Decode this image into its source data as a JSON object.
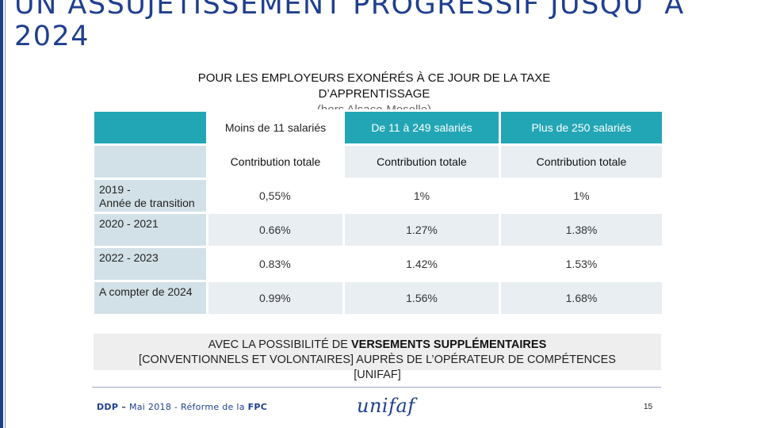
{
  "slide": {
    "title_line1": "UN ASSUJETISSEMENT PROGRESSIF JUSQU’ À",
    "title_line2": "2024",
    "subtitle_line1": "POUR LES EMPLOYEURS EXONÉRÉS À CE JOUR DE LA TAXE",
    "subtitle_line2": "D’APPRENTISSAGE",
    "subtitle_line3": "(hors Alsace-Moselle)"
  },
  "table": {
    "columns": [
      "Moins de 11 salariés",
      "De 11 à 249 salariés",
      "Plus de 250 salariés"
    ],
    "subheaders": [
      "Contribution totale",
      "Contribution totale",
      "Contribution totale"
    ],
    "rows": [
      {
        "label_line1": "2019 -",
        "label_line2": "Année de transition",
        "values": [
          "0,55%",
          "1%",
          "1%"
        ]
      },
      {
        "label_line1": "2020 - 2021",
        "label_line2": "",
        "values": [
          "0.66%",
          "1.27%",
          "1.38%"
        ]
      },
      {
        "label_line1": "2022 - 2023",
        "label_line2": "",
        "values": [
          "0.83%",
          "1.42%",
          "1.53%"
        ]
      },
      {
        "label_line1": "A compter de 2024",
        "label_line2": "",
        "values": [
          "0.99%",
          "1.56%",
          "1.68%"
        ]
      }
    ]
  },
  "note": {
    "prefix": "AVEC LA POSSIBILITÉ DE ",
    "bold": "VERSEMENTS SUPPLÉMENTAIRES",
    "line2": "[CONVENTIONNELS ET VOLONTAIRES]  AUPRÈS DE L’OPÉRATEUR DE COMPÉTENCES",
    "line3": "[UNIFAF]"
  },
  "footer": {
    "org": "DDP –",
    "text": " Mai 2018 - Réforme de la ",
    "topic": "FPC",
    "logo_text": "unifaf",
    "page_number": "15"
  }
}
